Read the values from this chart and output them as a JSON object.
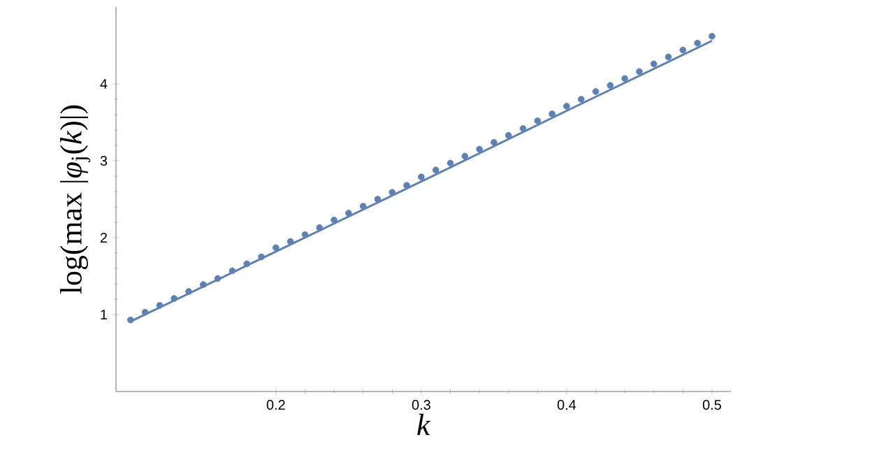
{
  "chart_data": {
    "type": "scatter",
    "xlabel": "*k*",
    "ylabel": "log(max |*φ*$_{j}$(*k*)|)",
    "xlim": [
      0.09,
      0.513
    ],
    "ylim": [
      0,
      5
    ],
    "xticks": [
      0.2,
      0.3,
      0.4,
      0.5
    ],
    "yticks": [
      1,
      2,
      3,
      4
    ],
    "marker": "circle",
    "series": [
      {
        "color": "#5e81b5",
        "x": [
          0.1,
          0.11,
          0.12,
          0.13,
          0.14,
          0.15,
          0.16,
          0.17,
          0.18,
          0.19,
          0.2,
          0.21,
          0.22,
          0.23,
          0.24,
          0.25,
          0.26,
          0.27,
          0.28,
          0.29,
          0.3,
          0.31,
          0.32,
          0.33,
          0.34,
          0.35,
          0.36,
          0.37,
          0.38,
          0.39,
          0.4,
          0.41,
          0.42,
          0.43,
          0.44,
          0.45,
          0.46,
          0.47,
          0.48,
          0.49,
          0.5
        ],
        "values": [
          0.93,
          1.03,
          1.12,
          1.21,
          1.3,
          1.39,
          1.47,
          1.57,
          1.66,
          1.75,
          1.87,
          1.95,
          2.04,
          2.13,
          2.23,
          2.32,
          2.41,
          2.5,
          2.59,
          2.68,
          2.79,
          2.88,
          2.97,
          3.06,
          3.15,
          3.24,
          3.33,
          3.42,
          3.52,
          3.61,
          3.71,
          3.8,
          3.9,
          3.98,
          4.07,
          4.16,
          4.26,
          4.35,
          4.44,
          4.53,
          4.62
        ]
      },
      {
        "type": "line",
        "color": "#5e81b5",
        "marker": "none",
        "x": [
          0.1,
          0.2,
          0.3,
          0.4,
          0.5
        ],
        "values": [
          0.91,
          1.82,
          2.73,
          3.65,
          4.56
        ]
      }
    ]
  }
}
